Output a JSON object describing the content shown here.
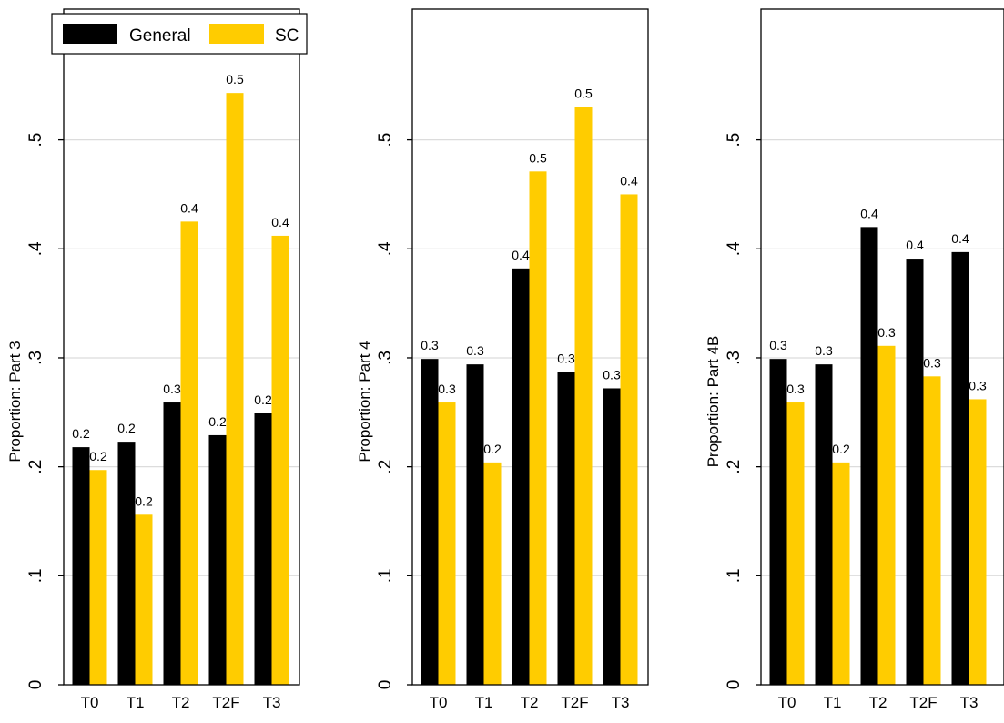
{
  "colors": {
    "general": "#000000",
    "sc": "#ffcc00",
    "grid": "#dcdcdc",
    "axis": "#000000"
  },
  "legend": {
    "entries": [
      "General",
      "SC"
    ],
    "placement": "top (inside first panel)"
  },
  "chart_data": [
    {
      "type": "bar",
      "ylabel": "Proportion: Part 3",
      "categories": [
        "T0",
        "T1",
        "T2",
        "T2F",
        "T3"
      ],
      "ylim": [
        0,
        0.62
      ],
      "yticks": [
        0,
        0.1,
        0.2,
        0.3,
        0.4,
        0.5
      ],
      "yticklabels": [
        "0",
        ".1",
        ".2",
        ".3",
        ".4",
        ".5"
      ],
      "grid": true,
      "series": [
        {
          "name": "General",
          "values": [
            0.218,
            0.223,
            0.259,
            0.229,
            0.249
          ],
          "labels": [
            "0.2",
            "0.2",
            "0.3",
            "0.2",
            "0.2"
          ]
        },
        {
          "name": "SC",
          "values": [
            0.197,
            0.156,
            0.425,
            0.543,
            0.412
          ],
          "labels": [
            "0.2",
            "0.2",
            "0.4",
            "0.5",
            "0.4"
          ]
        }
      ]
    },
    {
      "type": "bar",
      "ylabel": "Proportion: Part 4",
      "categories": [
        "T0",
        "T1",
        "T2",
        "T2F",
        "T3"
      ],
      "ylim": [
        0,
        0.62
      ],
      "yticks": [
        0,
        0.1,
        0.2,
        0.3,
        0.4,
        0.5
      ],
      "yticklabels": [
        "0",
        ".1",
        ".2",
        ".3",
        ".4",
        ".5"
      ],
      "grid": true,
      "series": [
        {
          "name": "General",
          "values": [
            0.299,
            0.294,
            0.382,
            0.287,
            0.272
          ],
          "labels": [
            "0.3",
            "0.3",
            "0.4",
            "0.3",
            "0.3"
          ]
        },
        {
          "name": "SC",
          "values": [
            0.259,
            0.204,
            0.471,
            0.53,
            0.45
          ],
          "labels": [
            "0.3",
            "0.2",
            "0.5",
            "0.5",
            "0.4"
          ]
        }
      ]
    },
    {
      "type": "bar",
      "ylabel": "Proportion: Part 4B",
      "categories": [
        "T0",
        "T1",
        "T2",
        "T2F",
        "T3"
      ],
      "ylim": [
        0,
        0.62
      ],
      "yticks": [
        0,
        0.1,
        0.2,
        0.3,
        0.4,
        0.5
      ],
      "yticklabels": [
        "0",
        ".1",
        ".2",
        ".3",
        ".4",
        ".5"
      ],
      "grid": true,
      "series": [
        {
          "name": "General",
          "values": [
            0.299,
            0.294,
            0.42,
            0.391,
            0.397
          ],
          "labels": [
            "0.3",
            "0.3",
            "0.4",
            "0.4",
            "0.4"
          ]
        },
        {
          "name": "SC",
          "values": [
            0.259,
            0.204,
            0.311,
            0.283,
            0.262
          ],
          "labels": [
            "0.3",
            "0.2",
            "0.3",
            "0.3",
            "0.3"
          ]
        }
      ]
    }
  ]
}
